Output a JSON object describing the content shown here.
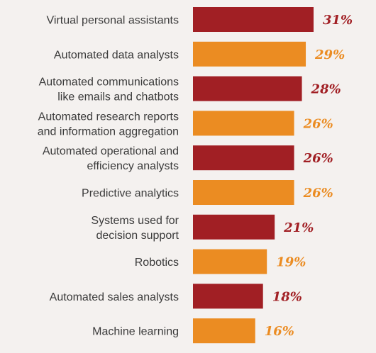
{
  "chart_data": {
    "type": "bar",
    "orientation": "horizontal",
    "title": "",
    "xlabel": "",
    "ylabel": "",
    "xlim": [
      0,
      31
    ],
    "categories": [
      [
        "Virtual personal assistants"
      ],
      [
        "Automated data analysts"
      ],
      [
        "Automated communications",
        "like emails and chatbots"
      ],
      [
        "Automated research reports",
        "and information aggregation"
      ],
      [
        "Automated operational and",
        "efficiency analysts"
      ],
      [
        "Predictive analytics"
      ],
      [
        "Systems used for",
        "decision support"
      ],
      [
        "Robotics"
      ],
      [
        "Automated sales analysts"
      ],
      [
        "Machine learning"
      ]
    ],
    "values": [
      31,
      29,
      28,
      26,
      26,
      26,
      21,
      19,
      18,
      16
    ],
    "value_labels": [
      "31%",
      "29%",
      "28%",
      "26%",
      "26%",
      "26%",
      "21%",
      "19%",
      "18%",
      "16%"
    ],
    "colors": [
      "#a11f24",
      "#eb8c22",
      "#a11f24",
      "#eb8c22",
      "#a11f24",
      "#eb8c22",
      "#a11f24",
      "#eb8c22",
      "#a11f24",
      "#eb8c22"
    ],
    "grid": false,
    "legend": "none"
  },
  "colors": {
    "background": "#f4f1ef",
    "dark_red": "#a11f24",
    "orange": "#eb8c22",
    "label_text": "#3b3b3b"
  }
}
